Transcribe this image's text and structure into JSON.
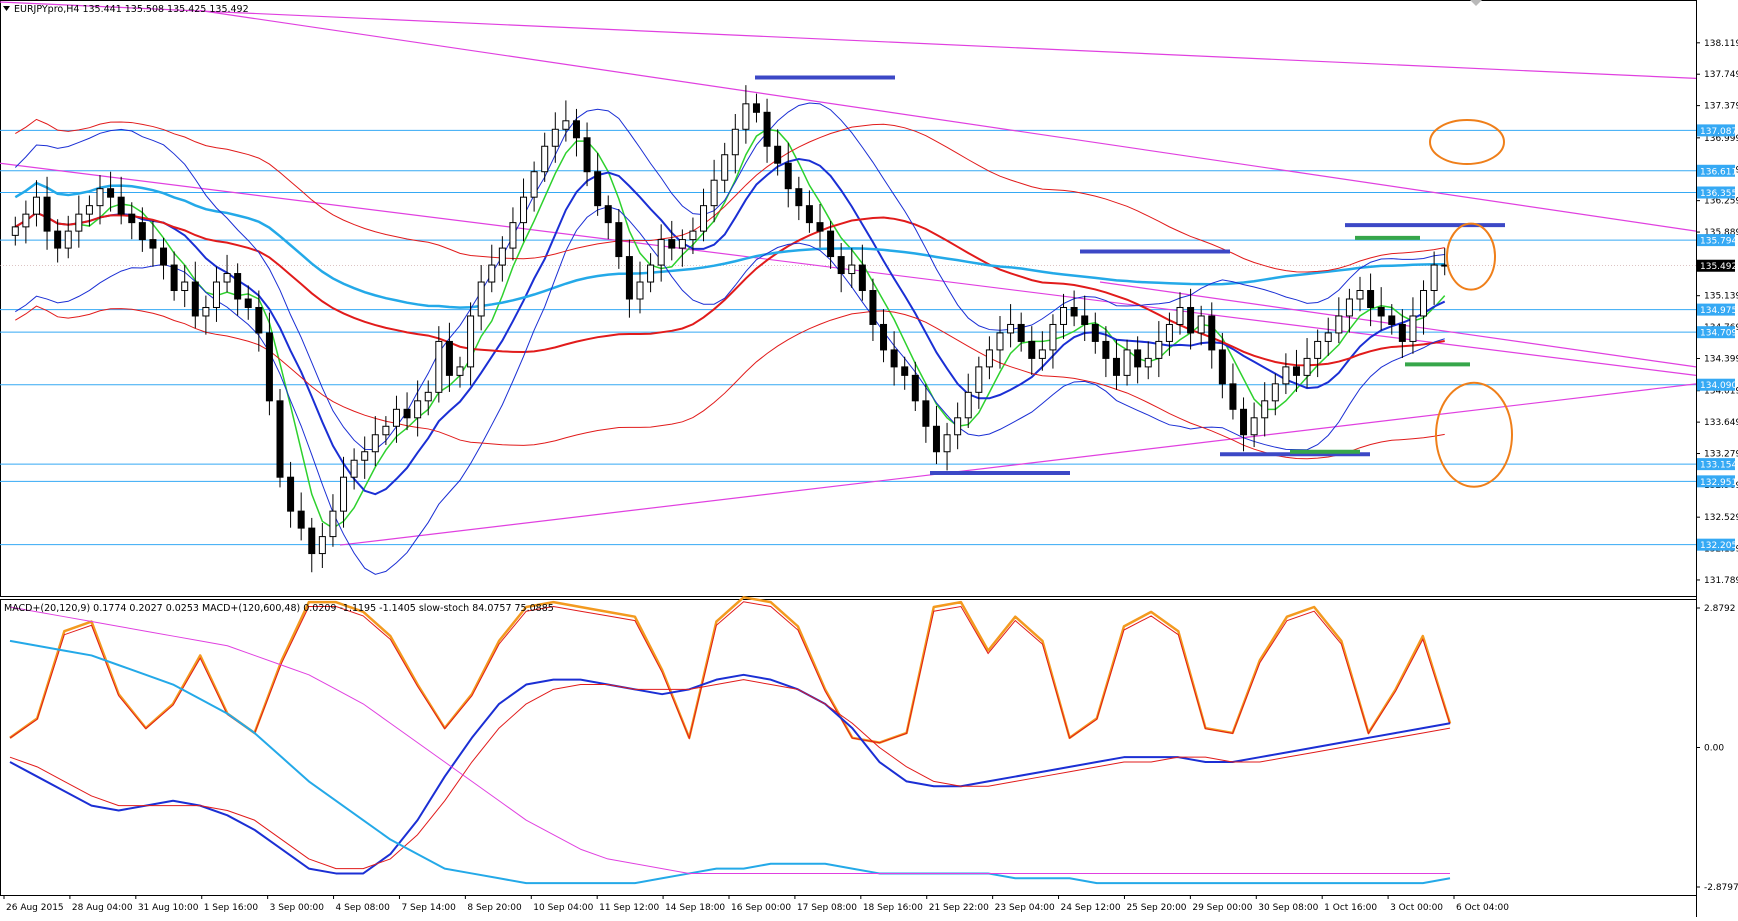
{
  "window": {
    "main_header": "EURJPYpro,H4  135.441 135.508 135.425 135.492",
    "sub_header": "MACD+(20,120,9) 0.1774 0.2027 0.0253  MACD+(120,600,48) 0.0209 -1.1195 -1.1405  slow-stoch 84.0757 75.0885"
  },
  "colors": {
    "candle_bull": "#ffffff",
    "candle_bear": "#000000",
    "support_lines": "#35a9f4",
    "badge": "#35a9f4",
    "price_badge": "#000000",
    "trendline": "#e040e0",
    "ma_red": "#e11b1b",
    "ma_blue": "#1b2fd4",
    "ma_green": "#2ed12e",
    "ma_cyan": "#24a9e8",
    "marker_blue": "#3c48c6",
    "marker_green": "#36a64a",
    "circle_orange": "#ef7f1a",
    "stoch_orange": "#f39a1f",
    "stoch_red": "#e11b1b"
  },
  "chart_data": [
    {
      "type": "candlestick",
      "title": "EURJPYpro,H4",
      "ohlc_header": {
        "open": 135.441,
        "high": 135.508,
        "low": 135.425,
        "close": 135.492
      },
      "current_price": 135.492,
      "ylim": [
        131.6,
        138.6
      ],
      "y_ticks": [
        138.119,
        137.749,
        137.379,
        136.999,
        136.629,
        136.259,
        135.889,
        135.139,
        134.769,
        134.399,
        134.019,
        133.649,
        133.279,
        132.909,
        132.529,
        132.159,
        131.789
      ],
      "x_ticks": [
        "26 Aug 2015",
        "28 Aug 04:00",
        "31 Aug 10:00",
        "1 Sep 16:00",
        "3 Sep 00:00",
        "4 Sep 08:00",
        "7 Sep 14:00",
        "8 Sep 20:00",
        "10 Sep 04:00",
        "11 Sep 12:00",
        "14 Sep 18:00",
        "16 Sep 00:00",
        "17 Sep 08:00",
        "18 Sep 16:00",
        "21 Sep 22:00",
        "23 Sep 04:00",
        "24 Sep 12:00",
        "25 Sep 20:00",
        "29 Sep 00:00",
        "30 Sep 08:00",
        "1 Oct 16:00",
        "3 Oct 00:00",
        "6 Oct 04:00"
      ],
      "horizontal_levels": [
        137.087,
        136.611,
        136.355,
        135.794,
        134.975,
        134.709,
        134.09,
        133.154,
        132.951,
        132.205
      ],
      "close_path": [
        135.95,
        136.1,
        136.3,
        135.9,
        135.7,
        135.9,
        136.1,
        136.2,
        136.4,
        136.3,
        136.1,
        136.0,
        135.8,
        135.7,
        135.5,
        135.2,
        135.3,
        134.9,
        135.0,
        135.3,
        135.4,
        135.1,
        135.0,
        134.7,
        133.9,
        133.0,
        132.6,
        132.4,
        132.1,
        132.3,
        132.6,
        133.0,
        133.2,
        133.3,
        133.5,
        133.6,
        133.8,
        133.7,
        133.9,
        134.0,
        134.6,
        134.2,
        134.3,
        134.9,
        135.3,
        135.5,
        135.7,
        136.0,
        136.3,
        136.6,
        136.9,
        137.1,
        137.2,
        137.0,
        136.6,
        136.2,
        136.0,
        135.6,
        135.1,
        135.3,
        135.5,
        135.8,
        135.7,
        135.8,
        135.9,
        136.2,
        136.5,
        136.8,
        137.1,
        137.4,
        137.3,
        136.9,
        136.7,
        136.4,
        136.2,
        136.0,
        135.9,
        135.6,
        135.4,
        135.5,
        135.2,
        134.8,
        134.5,
        134.3,
        134.2,
        133.9,
        133.6,
        133.3,
        133.5,
        133.7,
        134.0,
        134.3,
        134.5,
        134.7,
        134.8,
        134.6,
        134.4,
        134.5,
        134.8,
        135.0,
        134.9,
        134.8,
        134.6,
        134.4,
        134.2,
        134.5,
        134.3,
        134.4,
        134.6,
        134.8,
        135.0,
        134.7,
        134.9,
        134.5,
        134.1,
        133.8,
        133.5,
        133.7,
        133.9,
        134.1,
        134.3,
        134.2,
        134.4,
        134.6,
        134.7,
        134.9,
        135.1,
        135.2,
        135.0,
        134.9,
        134.8,
        134.6,
        134.9,
        135.2,
        135.5,
        135.5
      ]
    },
    {
      "type": "line",
      "title": "",
      "indicators": [
        "MACD+(20,120,9)",
        "MACD+(120,600,48)",
        "slow-stoch"
      ],
      "header_values": {
        "macd1": [
          0.1774,
          0.2027,
          0.0253
        ],
        "macd2": [
          0.0209,
          -1.1195,
          -1.1405
        ],
        "stoch": [
          84.0757,
          75.0885
        ]
      },
      "ylim": [
        -2.8797,
        2.8792
      ],
      "y_ticks": [
        2.8792,
        0.0,
        -2.8797
      ],
      "series": [
        {
          "key": "stoch_k",
          "values": [
            0.2,
            0.6,
            2.4,
            2.6,
            1.1,
            0.4,
            0.9,
            1.9,
            0.7,
            0.3,
            1.8,
            3.0,
            3.0,
            2.8,
            2.3,
            1.3,
            0.4,
            1.1,
            2.2,
            2.9,
            3.0,
            2.9,
            2.8,
            2.7,
            1.6,
            0.2,
            2.6,
            3.1,
            3.0,
            2.5,
            1.2,
            0.2,
            0.1,
            0.3,
            2.9,
            3.0,
            2.0,
            2.7,
            2.2,
            0.2,
            0.6,
            2.5,
            2.8,
            2.4,
            0.4,
            0.3,
            1.8,
            2.7,
            2.9,
            2.2,
            0.3,
            1.2,
            2.3,
            0.5
          ]
        },
        {
          "key": "macd_fast",
          "values": [
            -0.3,
            -0.6,
            -0.9,
            -1.2,
            -1.3,
            -1.2,
            -1.1,
            -1.2,
            -1.4,
            -1.7,
            -2.1,
            -2.5,
            -2.6,
            -2.6,
            -2.2,
            -1.5,
            -0.6,
            0.2,
            0.9,
            1.3,
            1.4,
            1.4,
            1.3,
            1.2,
            1.1,
            1.2,
            1.4,
            1.5,
            1.4,
            1.2,
            0.9,
            0.4,
            -0.3,
            -0.7,
            -0.8,
            -0.8,
            -0.7,
            -0.6,
            -0.5,
            -0.4,
            -0.3,
            -0.2,
            -0.2,
            -0.2,
            -0.3,
            -0.3,
            -0.2,
            -0.1,
            0.0,
            0.1,
            0.2,
            0.3,
            0.4,
            0.5
          ]
        },
        {
          "key": "macd_signal",
          "values": [
            -0.2,
            -0.4,
            -0.7,
            -1.0,
            -1.2,
            -1.2,
            -1.2,
            -1.2,
            -1.3,
            -1.5,
            -1.9,
            -2.3,
            -2.5,
            -2.5,
            -2.3,
            -1.8,
            -1.1,
            -0.3,
            0.4,
            0.9,
            1.2,
            1.3,
            1.3,
            1.2,
            1.2,
            1.2,
            1.3,
            1.4,
            1.3,
            1.2,
            0.9,
            0.5,
            0.0,
            -0.4,
            -0.7,
            -0.8,
            -0.8,
            -0.7,
            -0.6,
            -0.5,
            -0.4,
            -0.3,
            -0.3,
            -0.2,
            -0.2,
            -0.3,
            -0.3,
            -0.2,
            -0.1,
            0.0,
            0.1,
            0.2,
            0.3,
            0.4
          ]
        },
        {
          "key": "macd2_fast",
          "values": [
            2.2,
            2.1,
            2.0,
            1.9,
            1.7,
            1.5,
            1.3,
            1.0,
            0.7,
            0.3,
            -0.2,
            -0.7,
            -1.1,
            -1.5,
            -1.9,
            -2.2,
            -2.5,
            -2.6,
            -2.7,
            -2.8,
            -2.8,
            -2.8,
            -2.8,
            -2.8,
            -2.7,
            -2.6,
            -2.5,
            -2.5,
            -2.4,
            -2.4,
            -2.4,
            -2.5,
            -2.6,
            -2.6,
            -2.6,
            -2.6,
            -2.6,
            -2.7,
            -2.7,
            -2.7,
            -2.8,
            -2.8,
            -2.8,
            -2.8,
            -2.8,
            -2.8,
            -2.8,
            -2.8,
            -2.8,
            -2.8,
            -2.8,
            -2.8,
            -2.8,
            -2.7
          ]
        },
        {
          "key": "macd2_signal",
          "values": [
            2.9,
            2.8,
            2.7,
            2.6,
            2.5,
            2.4,
            2.3,
            2.2,
            2.1,
            1.9,
            1.7,
            1.5,
            1.2,
            0.9,
            0.5,
            0.1,
            -0.3,
            -0.7,
            -1.1,
            -1.5,
            -1.8,
            -2.1,
            -2.3,
            -2.4,
            -2.5,
            -2.6,
            -2.6,
            -2.6,
            -2.6,
            -2.6,
            -2.6,
            -2.6,
            -2.6,
            -2.6,
            -2.6,
            -2.6,
            -2.6,
            -2.6,
            -2.6,
            -2.6,
            -2.6,
            -2.6,
            -2.6,
            -2.6,
            -2.6,
            -2.6,
            -2.6,
            -2.6,
            -2.6,
            -2.6,
            -2.6,
            -2.6,
            -2.6,
            -2.6
          ]
        }
      ]
    }
  ]
}
